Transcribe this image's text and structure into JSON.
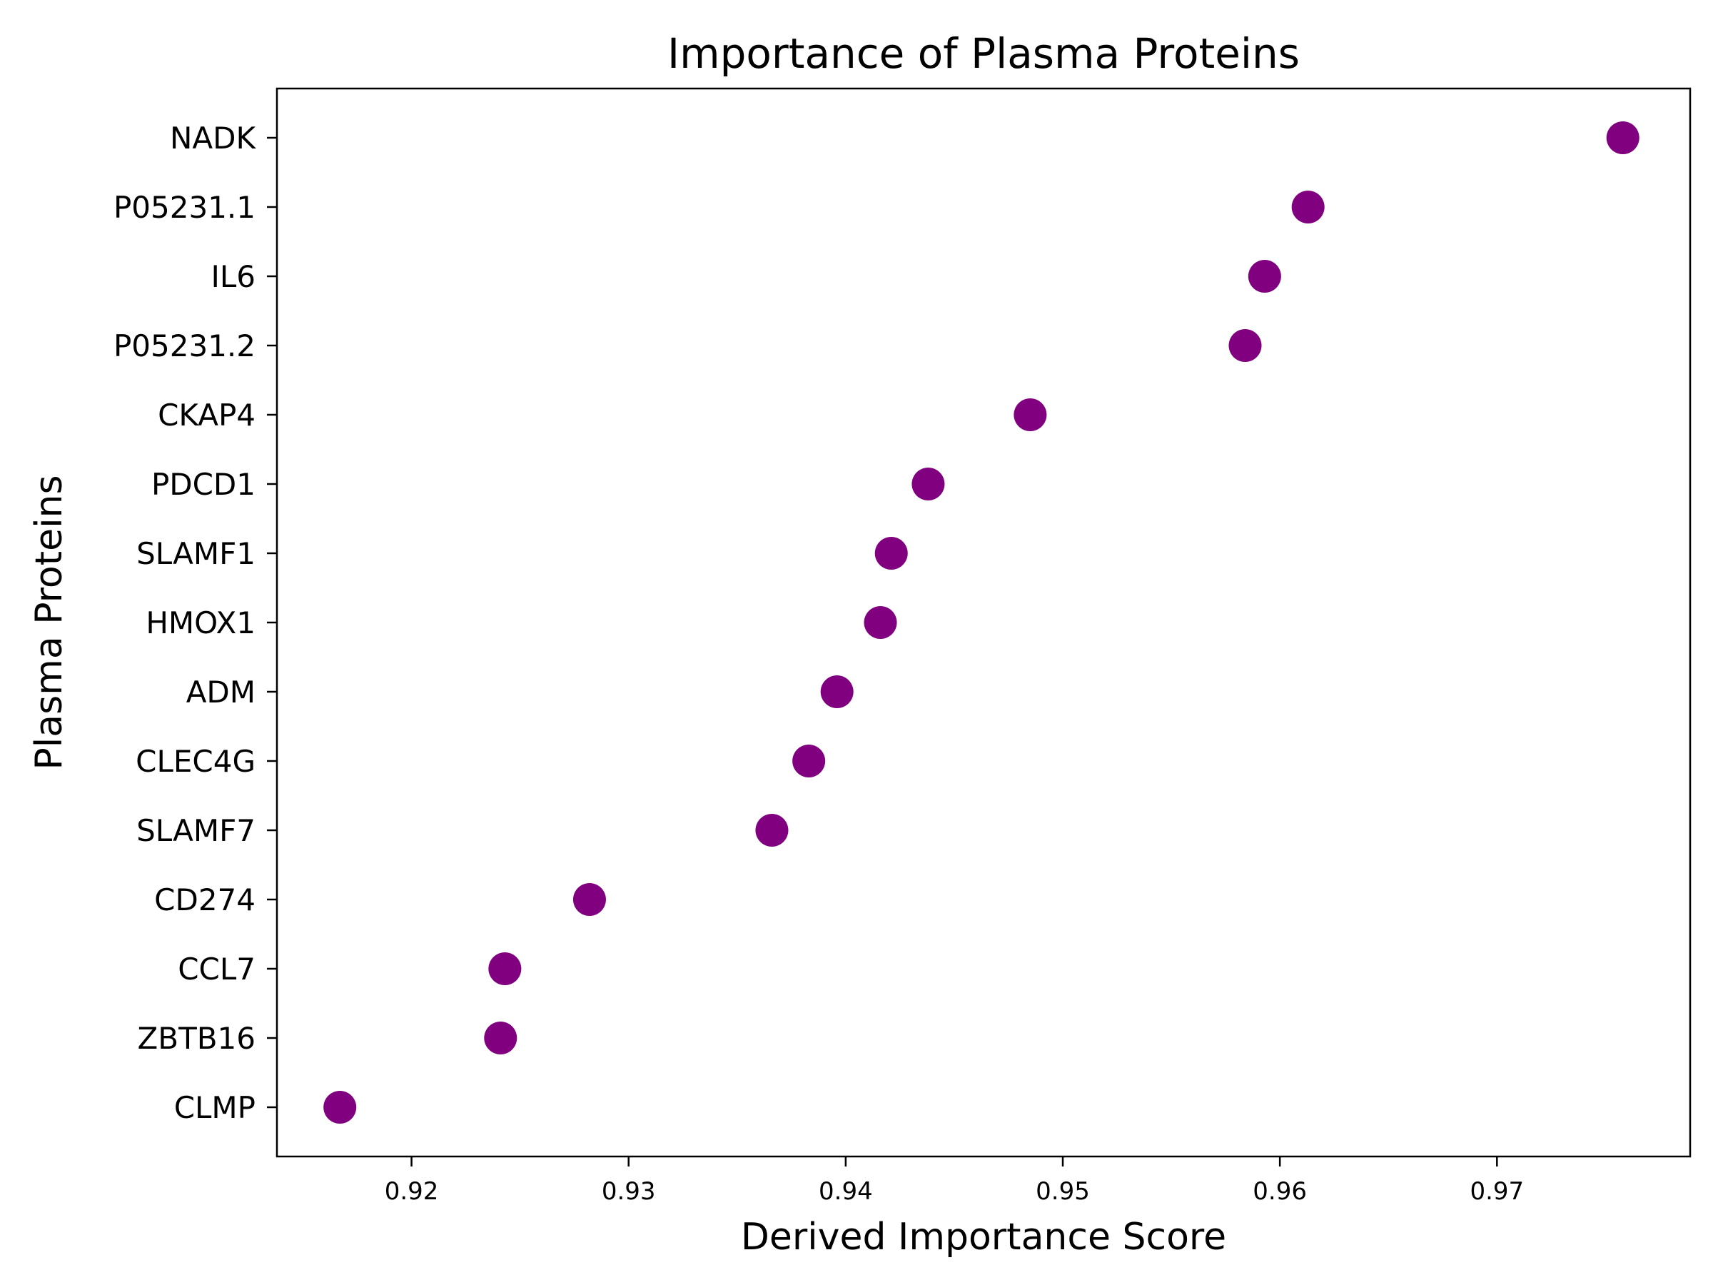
{
  "chart_data": {
    "type": "scatter",
    "title": "Importance of Plasma Proteins",
    "xlabel": "Derived Importance Score",
    "ylabel": "Plasma Proteins",
    "xlim": [
      0.9138,
      0.9789
    ],
    "xticks": [
      0.92,
      0.93,
      0.94,
      0.95,
      0.96,
      0.97
    ],
    "xtick_labels": [
      "0.92",
      "0.93",
      "0.94",
      "0.95",
      "0.96",
      "0.97"
    ],
    "categories": [
      "NADK",
      "P05231.1",
      "IL6",
      "P05231.2",
      "CKAP4",
      "PDCD1",
      "SLAMF1",
      "HMOX1",
      "ADM",
      "CLEC4G",
      "SLAMF7",
      "CD274",
      "CCL7",
      "ZBTB16",
      "CLMP"
    ],
    "values": [
      0.9758,
      0.9613,
      0.9593,
      0.9584,
      0.9485,
      0.9438,
      0.9421,
      0.9416,
      0.9396,
      0.9383,
      0.9366,
      0.9282,
      0.9243,
      0.9241,
      0.9167
    ],
    "grid": false,
    "legend": null,
    "marker_color": "#800080"
  }
}
